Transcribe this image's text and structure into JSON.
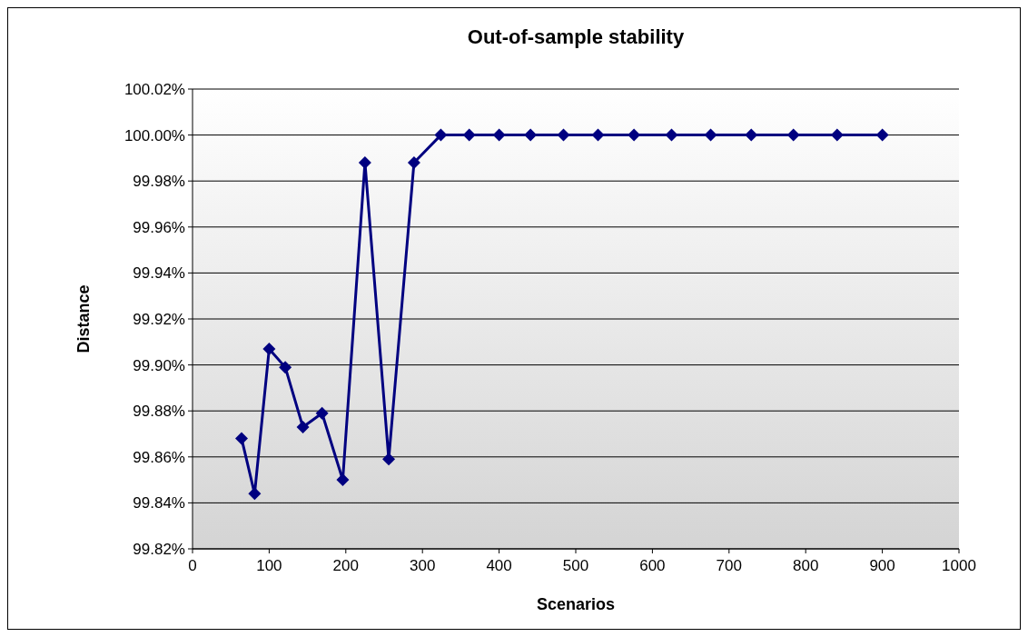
{
  "chart_data": {
    "type": "line",
    "title": "Out-of-sample stability",
    "xlabel": "Scenarios",
    "ylabel": "Distance",
    "x": [
      64,
      81,
      100,
      121,
      144,
      169,
      196,
      225,
      256,
      289,
      324,
      361,
      400,
      441,
      484,
      529,
      576,
      625,
      676,
      729,
      784,
      841,
      900
    ],
    "series": [
      {
        "color": "#000080",
        "values": [
          99.868,
          99.844,
          99.907,
          99.899,
          99.873,
          99.879,
          99.85,
          99.988,
          99.859,
          99.988,
          100.0,
          100.0,
          100.0,
          100.0,
          100.0,
          100.0,
          100.0,
          100.0,
          100.0,
          100.0,
          100.0,
          100.0,
          100.0
        ]
      }
    ],
    "xlim": [
      0,
      1000
    ],
    "xticks": [
      0,
      100,
      200,
      300,
      400,
      500,
      600,
      700,
      800,
      900,
      1000
    ],
    "ylim": [
      99.82,
      100.02
    ],
    "yticks": [
      {
        "value": 99.82,
        "label": "99.82%"
      },
      {
        "value": 99.84,
        "label": "99.84%"
      },
      {
        "value": 99.86,
        "label": "99.86%"
      },
      {
        "value": 99.88,
        "label": "99.88%"
      },
      {
        "value": 99.9,
        "label": "99.90%"
      },
      {
        "value": 99.92,
        "label": "99.92%"
      },
      {
        "value": 99.94,
        "label": "99.94%"
      },
      {
        "value": 99.96,
        "label": "99.96%"
      },
      {
        "value": 99.98,
        "label": "99.98%"
      },
      {
        "value": 100.0,
        "label": "100.00%"
      },
      {
        "value": 100.02,
        "label": "100.02%"
      }
    ],
    "grid": "y",
    "marker": "diamond",
    "line_style": "solid"
  }
}
